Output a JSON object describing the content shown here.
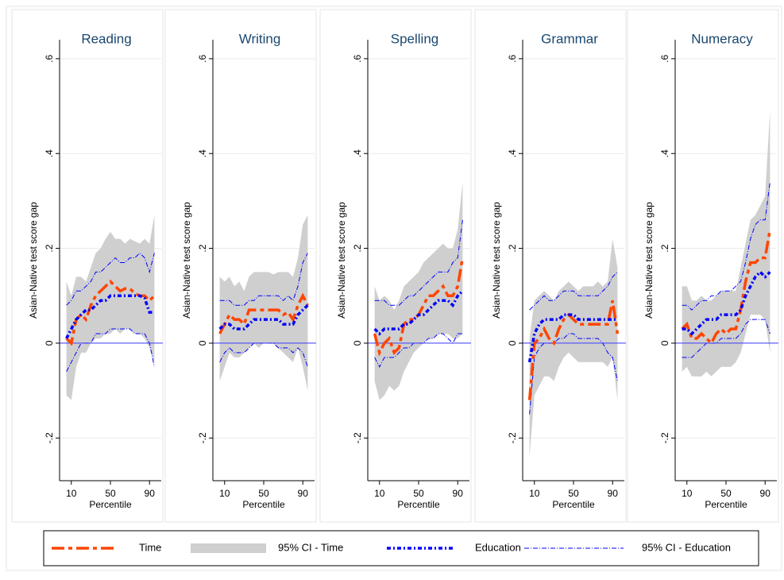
{
  "chart_data": [
    {
      "type": "line",
      "title": "Reading",
      "xlabel": "Percentile",
      "ylabel": "Asian-Native test score gap",
      "x": [
        5,
        10,
        15,
        20,
        25,
        30,
        35,
        40,
        45,
        50,
        55,
        60,
        65,
        70,
        75,
        80,
        85,
        90,
        95
      ],
      "xlim": [
        -2,
        102
      ],
      "xticks": [
        10,
        50,
        90
      ],
      "ylim": [
        -0.29,
        0.64
      ],
      "yticks": [
        {
          "value": -0.2,
          "label": "-.2"
        },
        {
          "value": 0,
          "label": "0"
        },
        {
          "value": 0.2,
          "label": ".2"
        },
        {
          "value": 0.4,
          "label": ".4"
        },
        {
          "value": 0.6,
          "label": ".6"
        }
      ],
      "hline": 0,
      "grid": true,
      "series": [
        {
          "name": "Time",
          "color": "#ff4500",
          "values": [
            0.01,
            0,
            0.05,
            0.06,
            0.05,
            0.08,
            0.1,
            0.11,
            0.12,
            0.13,
            0.12,
            0.11,
            0.115,
            0.115,
            0.105,
            0.1,
            0.1,
            0.09,
            0.1
          ]
        },
        {
          "name": "95% CI - Time",
          "color": "#cfcfcf",
          "lower": [
            -0.11,
            -0.12,
            -0.05,
            -0.02,
            -0.02,
            0,
            0.01,
            0.01,
            0.02,
            0.02,
            0.03,
            0.02,
            0.03,
            0.03,
            0.02,
            0.02,
            0.01,
            -0.01,
            -0.04
          ],
          "upper": [
            0.13,
            0.1,
            0.14,
            0.14,
            0.13,
            0.16,
            0.19,
            0.2,
            0.22,
            0.235,
            0.22,
            0.22,
            0.21,
            0.22,
            0.215,
            0.21,
            0.22,
            0.21,
            0.27
          ]
        },
        {
          "name": "Education",
          "color": "#0000ff",
          "values": [
            0.01,
            0.03,
            0.05,
            0.06,
            0.07,
            0.07,
            0.08,
            0.09,
            0.09,
            0.1,
            0.1,
            0.1,
            0.1,
            0.1,
            0.1,
            0.1,
            0.095,
            0.065,
            0.065
          ]
        },
        {
          "name": "95% CI - Education",
          "color": "#0000ff",
          "lower": [
            -0.06,
            -0.04,
            -0.02,
            0,
            0,
            0,
            0.02,
            0.02,
            0.02,
            0.03,
            0.03,
            0.03,
            0.03,
            0.03,
            0.02,
            0.02,
            0.02,
            0,
            -0.05
          ],
          "upper": [
            0.08,
            0.09,
            0.11,
            0.11,
            0.12,
            0.13,
            0.15,
            0.15,
            0.16,
            0.17,
            0.18,
            0.17,
            0.17,
            0.18,
            0.18,
            0.19,
            0.18,
            0.15,
            0.19
          ]
        }
      ]
    },
    {
      "type": "line",
      "title": "Writing",
      "xlabel": "Percentile",
      "ylabel": "Asian-Native test score gap",
      "x": [
        5,
        10,
        15,
        20,
        25,
        30,
        35,
        40,
        45,
        50,
        55,
        60,
        65,
        70,
        75,
        80,
        85,
        90,
        95
      ],
      "xlim": [
        -2,
        102
      ],
      "xticks": [
        10,
        50,
        90
      ],
      "ylim": [
        -0.29,
        0.64
      ],
      "yticks": [
        {
          "value": -0.2,
          "label": "-.2"
        },
        {
          "value": 0,
          "label": "0"
        },
        {
          "value": 0.2,
          "label": ".2"
        },
        {
          "value": 0.4,
          "label": ".4"
        },
        {
          "value": 0.6,
          "label": ".6"
        }
      ],
      "hline": 0,
      "grid": true,
      "series": [
        {
          "name": "Time",
          "color": "#ff4500",
          "values": [
            0.02,
            0.04,
            0.06,
            0.05,
            0.05,
            0.04,
            0.07,
            0.07,
            0.07,
            0.07,
            0.07,
            0.07,
            0.07,
            0.06,
            0.065,
            0.05,
            0.08,
            0.1,
            0.08
          ]
        },
        {
          "name": "95% CI - Time",
          "color": "#cfcfcf",
          "lower": [
            -0.08,
            -0.05,
            -0.02,
            -0.03,
            -0.03,
            -0.02,
            -0.01,
            0,
            -0.01,
            0,
            0,
            0,
            -0.01,
            -0.02,
            -0.03,
            -0.04,
            -0.01,
            -0.05,
            -0.1
          ],
          "upper": [
            0.14,
            0.13,
            0.14,
            0.12,
            0.13,
            0.11,
            0.14,
            0.15,
            0.15,
            0.15,
            0.15,
            0.145,
            0.15,
            0.15,
            0.15,
            0.14,
            0.18,
            0.25,
            0.27
          ]
        },
        {
          "name": "Education",
          "color": "#0000ff",
          "values": [
            0.03,
            0.04,
            0.04,
            0.03,
            0.03,
            0.03,
            0.04,
            0.05,
            0.05,
            0.05,
            0.05,
            0.05,
            0.05,
            0.04,
            0.04,
            0.04,
            0.06,
            0.07,
            0.08
          ]
        },
        {
          "name": "95% CI - Education",
          "color": "#0000ff",
          "lower": [
            -0.04,
            -0.02,
            -0.01,
            -0.02,
            -0.02,
            -0.02,
            -0.01,
            0,
            0,
            0,
            0,
            0,
            -0.01,
            -0.01,
            -0.01,
            -0.02,
            -0.01,
            -0.02,
            -0.05
          ],
          "upper": [
            0.09,
            0.09,
            0.09,
            0.08,
            0.08,
            0.08,
            0.09,
            0.09,
            0.1,
            0.1,
            0.1,
            0.1,
            0.1,
            0.09,
            0.1,
            0.09,
            0.12,
            0.17,
            0.19
          ]
        }
      ]
    },
    {
      "type": "line",
      "title": "Spelling",
      "xlabel": "Percentile",
      "ylabel": "Asian-Native test score gap",
      "x": [
        5,
        10,
        15,
        20,
        25,
        30,
        35,
        40,
        45,
        50,
        55,
        60,
        65,
        70,
        75,
        80,
        85,
        90,
        95
      ],
      "xlim": [
        -2,
        102
      ],
      "xticks": [
        10,
        50,
        90
      ],
      "ylim": [
        -0.29,
        0.64
      ],
      "yticks": [
        {
          "value": -0.2,
          "label": "-.2"
        },
        {
          "value": 0,
          "label": "0"
        },
        {
          "value": 0.2,
          "label": ".2"
        },
        {
          "value": 0.4,
          "label": ".4"
        },
        {
          "value": 0.6,
          "label": ".6"
        }
      ],
      "hline": 0,
      "grid": true,
      "series": [
        {
          "name": "Time",
          "color": "#ff4500",
          "values": [
            0.02,
            -0.02,
            0,
            0.01,
            -0.02,
            -0.01,
            0.04,
            0.05,
            0.05,
            0.06,
            0.08,
            0.1,
            0.1,
            0.11,
            0.12,
            0.1,
            0.1,
            0.12,
            0.18
          ]
        },
        {
          "name": "95% CI - Time",
          "color": "#cfcfcf",
          "lower": [
            -0.08,
            -0.12,
            -0.11,
            -0.09,
            -0.1,
            -0.09,
            -0.06,
            -0.04,
            -0.02,
            -0.01,
            0,
            0.01,
            0.01,
            0.02,
            0.02,
            0.02,
            0.01,
            0.01,
            0.02
          ],
          "upper": [
            0.12,
            0.09,
            0.1,
            0.09,
            0.07,
            0.09,
            0.12,
            0.13,
            0.14,
            0.15,
            0.17,
            0.18,
            0.19,
            0.2,
            0.21,
            0.2,
            0.2,
            0.24,
            0.34
          ]
        },
        {
          "name": "Education",
          "color": "#0000ff",
          "values": [
            0.03,
            0.02,
            0.03,
            0.03,
            0.03,
            0.03,
            0.04,
            0.04,
            0.05,
            0.06,
            0.06,
            0.07,
            0.08,
            0.09,
            0.09,
            0.09,
            0.08,
            0.1,
            0.11
          ]
        },
        {
          "name": "95% CI - Education",
          "color": "#0000ff",
          "lower": [
            -0.03,
            -0.05,
            -0.03,
            -0.03,
            -0.03,
            -0.02,
            -0.01,
            -0.01,
            0,
            0,
            0,
            0.01,
            0.01,
            0.02,
            0.02,
            0.01,
            0,
            0.02,
            0.02
          ],
          "upper": [
            0.09,
            0.09,
            0.09,
            0.08,
            0.08,
            0.08,
            0.09,
            0.1,
            0.1,
            0.11,
            0.12,
            0.13,
            0.14,
            0.15,
            0.15,
            0.15,
            0.17,
            0.18,
            0.26
          ]
        }
      ]
    },
    {
      "type": "line",
      "title": "Grammar",
      "xlabel": "Percentile",
      "ylabel": "Asian-Native test score gap",
      "x": [
        5,
        10,
        15,
        20,
        25,
        30,
        35,
        40,
        45,
        50,
        55,
        60,
        65,
        70,
        75,
        80,
        85,
        90,
        95
      ],
      "xlim": [
        -2,
        102
      ],
      "xticks": [
        10,
        50,
        90
      ],
      "ylim": [
        -0.29,
        0.64
      ],
      "yticks": [
        {
          "value": -0.2,
          "label": "-.2"
        },
        {
          "value": 0,
          "label": "0"
        },
        {
          "value": 0.2,
          "label": ".2"
        },
        {
          "value": 0.4,
          "label": ".4"
        },
        {
          "value": 0.6,
          "label": ".6"
        }
      ],
      "hline": 0,
      "grid": true,
      "series": [
        {
          "name": "Time",
          "color": "#ff4500",
          "values": [
            -0.12,
            0,
            0.01,
            0.03,
            0.01,
            0,
            0.03,
            0.05,
            0.06,
            0.05,
            0.04,
            0.04,
            0.04,
            0.04,
            0.04,
            0.04,
            0.04,
            0.09,
            0.02
          ]
        },
        {
          "name": "95% CI - Time",
          "color": "#cfcfcf",
          "lower": [
            -0.24,
            -0.11,
            -0.09,
            -0.07,
            -0.07,
            -0.08,
            -0.05,
            -0.03,
            -0.02,
            -0.03,
            -0.04,
            -0.04,
            -0.04,
            -0.04,
            -0.04,
            -0.04,
            -0.05,
            -0.03,
            -0.12
          ],
          "upper": [
            0.01,
            0.09,
            0.1,
            0.11,
            0.1,
            0.09,
            0.11,
            0.12,
            0.13,
            0.12,
            0.11,
            0.12,
            0.12,
            0.12,
            0.13,
            0.12,
            0.13,
            0.22,
            0.16
          ]
        },
        {
          "name": "Education",
          "color": "#0000ff",
          "values": [
            -0.04,
            0.02,
            0.04,
            0.05,
            0.05,
            0.05,
            0.05,
            0.06,
            0.06,
            0.06,
            0.05,
            0.05,
            0.05,
            0.05,
            0.05,
            0.05,
            0.05,
            0.05,
            0.05
          ]
        },
        {
          "name": "95% CI - Education",
          "color": "#0000ff",
          "lower": [
            -0.15,
            -0.03,
            -0.01,
            0,
            0,
            0,
            0.01,
            0.01,
            0.02,
            0.02,
            0.01,
            0.01,
            0.01,
            0.01,
            0.01,
            0,
            -0.02,
            -0.03,
            -0.08
          ],
          "upper": [
            0.07,
            0.08,
            0.09,
            0.1,
            0.09,
            0.09,
            0.1,
            0.11,
            0.11,
            0.11,
            0.1,
            0.1,
            0.1,
            0.1,
            0.1,
            0.11,
            0.12,
            0.14,
            0.15
          ]
        }
      ]
    },
    {
      "type": "line",
      "title": "Numeracy",
      "xlabel": "Percentile",
      "ylabel": "Asian-Native test score gap",
      "x": [
        5,
        10,
        15,
        20,
        25,
        30,
        35,
        40,
        45,
        50,
        55,
        60,
        65,
        70,
        75,
        80,
        85,
        90,
        95
      ],
      "xlim": [
        -2,
        102
      ],
      "xticks": [
        10,
        50,
        90
      ],
      "ylim": [
        -0.29,
        0.64
      ],
      "yticks": [
        {
          "value": -0.2,
          "label": "-.2"
        },
        {
          "value": 0,
          "label": "0"
        },
        {
          "value": 0.2,
          "label": ".2"
        },
        {
          "value": 0.4,
          "label": ".4"
        },
        {
          "value": 0.6,
          "label": ".6"
        }
      ],
      "hline": 0,
      "grid": true,
      "series": [
        {
          "name": "Time",
          "color": "#ff4500",
          "values": [
            0.03,
            0.04,
            0.01,
            0.01,
            0.02,
            0.01,
            0,
            0.02,
            0.03,
            0.02,
            0.03,
            0.03,
            0.07,
            0.13,
            0.17,
            0.17,
            0.18,
            0.18,
            0.24
          ]
        },
        {
          "name": "95% CI - Time",
          "color": "#cfcfcf",
          "lower": [
            -0.06,
            -0.05,
            -0.07,
            -0.07,
            -0.07,
            -0.06,
            -0.07,
            -0.06,
            -0.05,
            -0.05,
            -0.05,
            -0.04,
            -0.02,
            0.02,
            0.06,
            0.06,
            0.06,
            0.05,
            -0.02
          ],
          "upper": [
            0.12,
            0.12,
            0.09,
            0.09,
            0.1,
            0.09,
            0.09,
            0.1,
            0.11,
            0.11,
            0.11,
            0.11,
            0.16,
            0.21,
            0.26,
            0.27,
            0.29,
            0.31,
            0.49
          ]
        },
        {
          "name": "Education",
          "color": "#0000ff",
          "values": [
            0.03,
            0.03,
            0.02,
            0.03,
            0.04,
            0.05,
            0.05,
            0.05,
            0.06,
            0.06,
            0.06,
            0.06,
            0.07,
            0.1,
            0.12,
            0.14,
            0.15,
            0.14,
            0.15
          ]
        },
        {
          "name": "95% CI - Education",
          "color": "#0000ff",
          "lower": [
            -0.03,
            -0.03,
            -0.03,
            -0.02,
            -0.01,
            0,
            0,
            0,
            0.01,
            0.01,
            0.01,
            0.01,
            0.02,
            0.04,
            0.05,
            0.05,
            0.05,
            0.05,
            0.02
          ],
          "upper": [
            0.08,
            0.08,
            0.07,
            0.08,
            0.09,
            0.09,
            0.1,
            0.1,
            0.11,
            0.11,
            0.11,
            0.12,
            0.13,
            0.17,
            0.22,
            0.25,
            0.26,
            0.26,
            0.34
          ]
        }
      ]
    }
  ]
}
